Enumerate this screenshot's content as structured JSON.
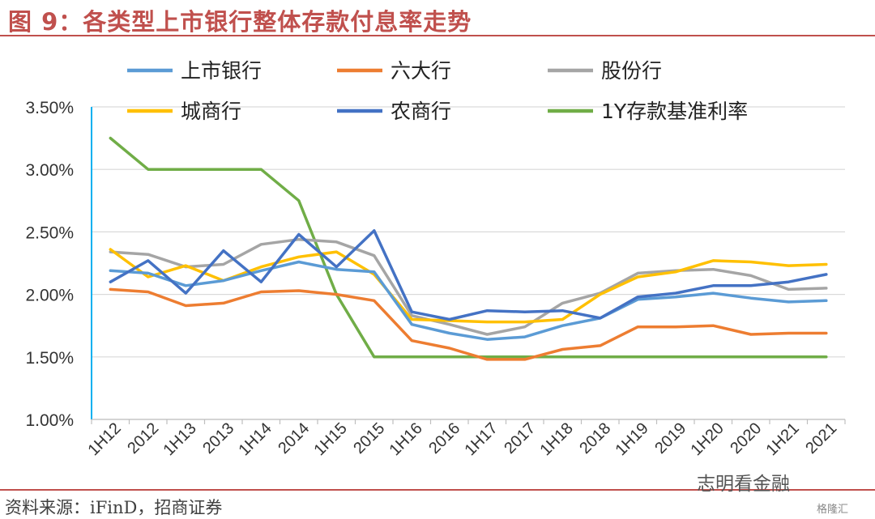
{
  "header": {
    "title": "图 9：各类型上市银行整体存款付息率走势"
  },
  "footer": {
    "source": "资料来源：iFinD，招商证券"
  },
  "watermark": {
    "text": "志明看金融",
    "logo_text": "格隆汇"
  },
  "chart_data": {
    "type": "line",
    "title": "",
    "xlabel": "",
    "ylabel": "",
    "ylim": [
      0.01,
      0.035
    ],
    "yticks": [
      "1.00%",
      "1.50%",
      "2.00%",
      "2.50%",
      "3.00%",
      "3.50%"
    ],
    "ytick_values": [
      0.01,
      0.015,
      0.02,
      0.025,
      0.03,
      0.035
    ],
    "grid": true,
    "legend_position": "top",
    "categories": [
      "1H12",
      "2012",
      "1H13",
      "2013",
      "1H14",
      "2014",
      "1H15",
      "2015",
      "1H16",
      "2016",
      "1H17",
      "2017",
      "1H18",
      "2018",
      "1H19",
      "2019",
      "1H20",
      "2020",
      "1H21",
      "2021"
    ],
    "series": [
      {
        "name": "上市银行",
        "color": "#5b9bd5",
        "values": [
          0.0219,
          0.0217,
          0.0207,
          0.0211,
          0.0219,
          0.0226,
          0.022,
          0.0218,
          0.0176,
          0.0169,
          0.0164,
          0.0166,
          0.0175,
          0.0181,
          0.0196,
          0.0198,
          0.0201,
          0.0197,
          0.0194,
          0.0195
        ]
      },
      {
        "name": "六大行",
        "color": "#ed7d31",
        "values": [
          0.0204,
          0.0202,
          0.0191,
          0.0193,
          0.0202,
          0.0203,
          0.02,
          0.0195,
          0.0163,
          0.0157,
          0.0148,
          0.0148,
          0.0156,
          0.0159,
          0.0174,
          0.0174,
          0.0175,
          0.0168,
          0.0169,
          0.0169
        ]
      },
      {
        "name": "股份行",
        "color": "#a5a5a5",
        "values": [
          0.0234,
          0.0232,
          0.0222,
          0.0224,
          0.024,
          0.0244,
          0.0242,
          0.0231,
          0.0183,
          0.0176,
          0.0168,
          0.0174,
          0.0193,
          0.0201,
          0.0217,
          0.0219,
          0.022,
          0.0215,
          0.0204,
          0.0205
        ]
      },
      {
        "name": "城商行",
        "color": "#ffc000",
        "values": [
          0.0236,
          0.0214,
          0.0223,
          0.0211,
          0.0222,
          0.023,
          0.0234,
          0.0216,
          0.018,
          0.0179,
          0.0178,
          0.0178,
          0.018,
          0.02,
          0.0214,
          0.0218,
          0.0227,
          0.0226,
          0.0223,
          0.0224
        ]
      },
      {
        "name": "农商行",
        "color": "#4472c4",
        "values": [
          0.021,
          0.0227,
          0.0201,
          0.0235,
          0.021,
          0.0248,
          0.0222,
          0.0251,
          0.0186,
          0.018,
          0.0187,
          0.0186,
          0.0187,
          0.0181,
          0.0198,
          0.0201,
          0.0207,
          0.0207,
          0.021,
          0.0216
        ]
      },
      {
        "name": "1Y存款基准利率",
        "color": "#70ad47",
        "values": [
          0.0325,
          0.03,
          0.03,
          0.03,
          0.03,
          0.0275,
          0.02,
          0.015,
          0.015,
          0.015,
          0.015,
          0.015,
          0.015,
          0.015,
          0.015,
          0.015,
          0.015,
          0.015,
          0.015,
          0.015
        ]
      }
    ]
  }
}
